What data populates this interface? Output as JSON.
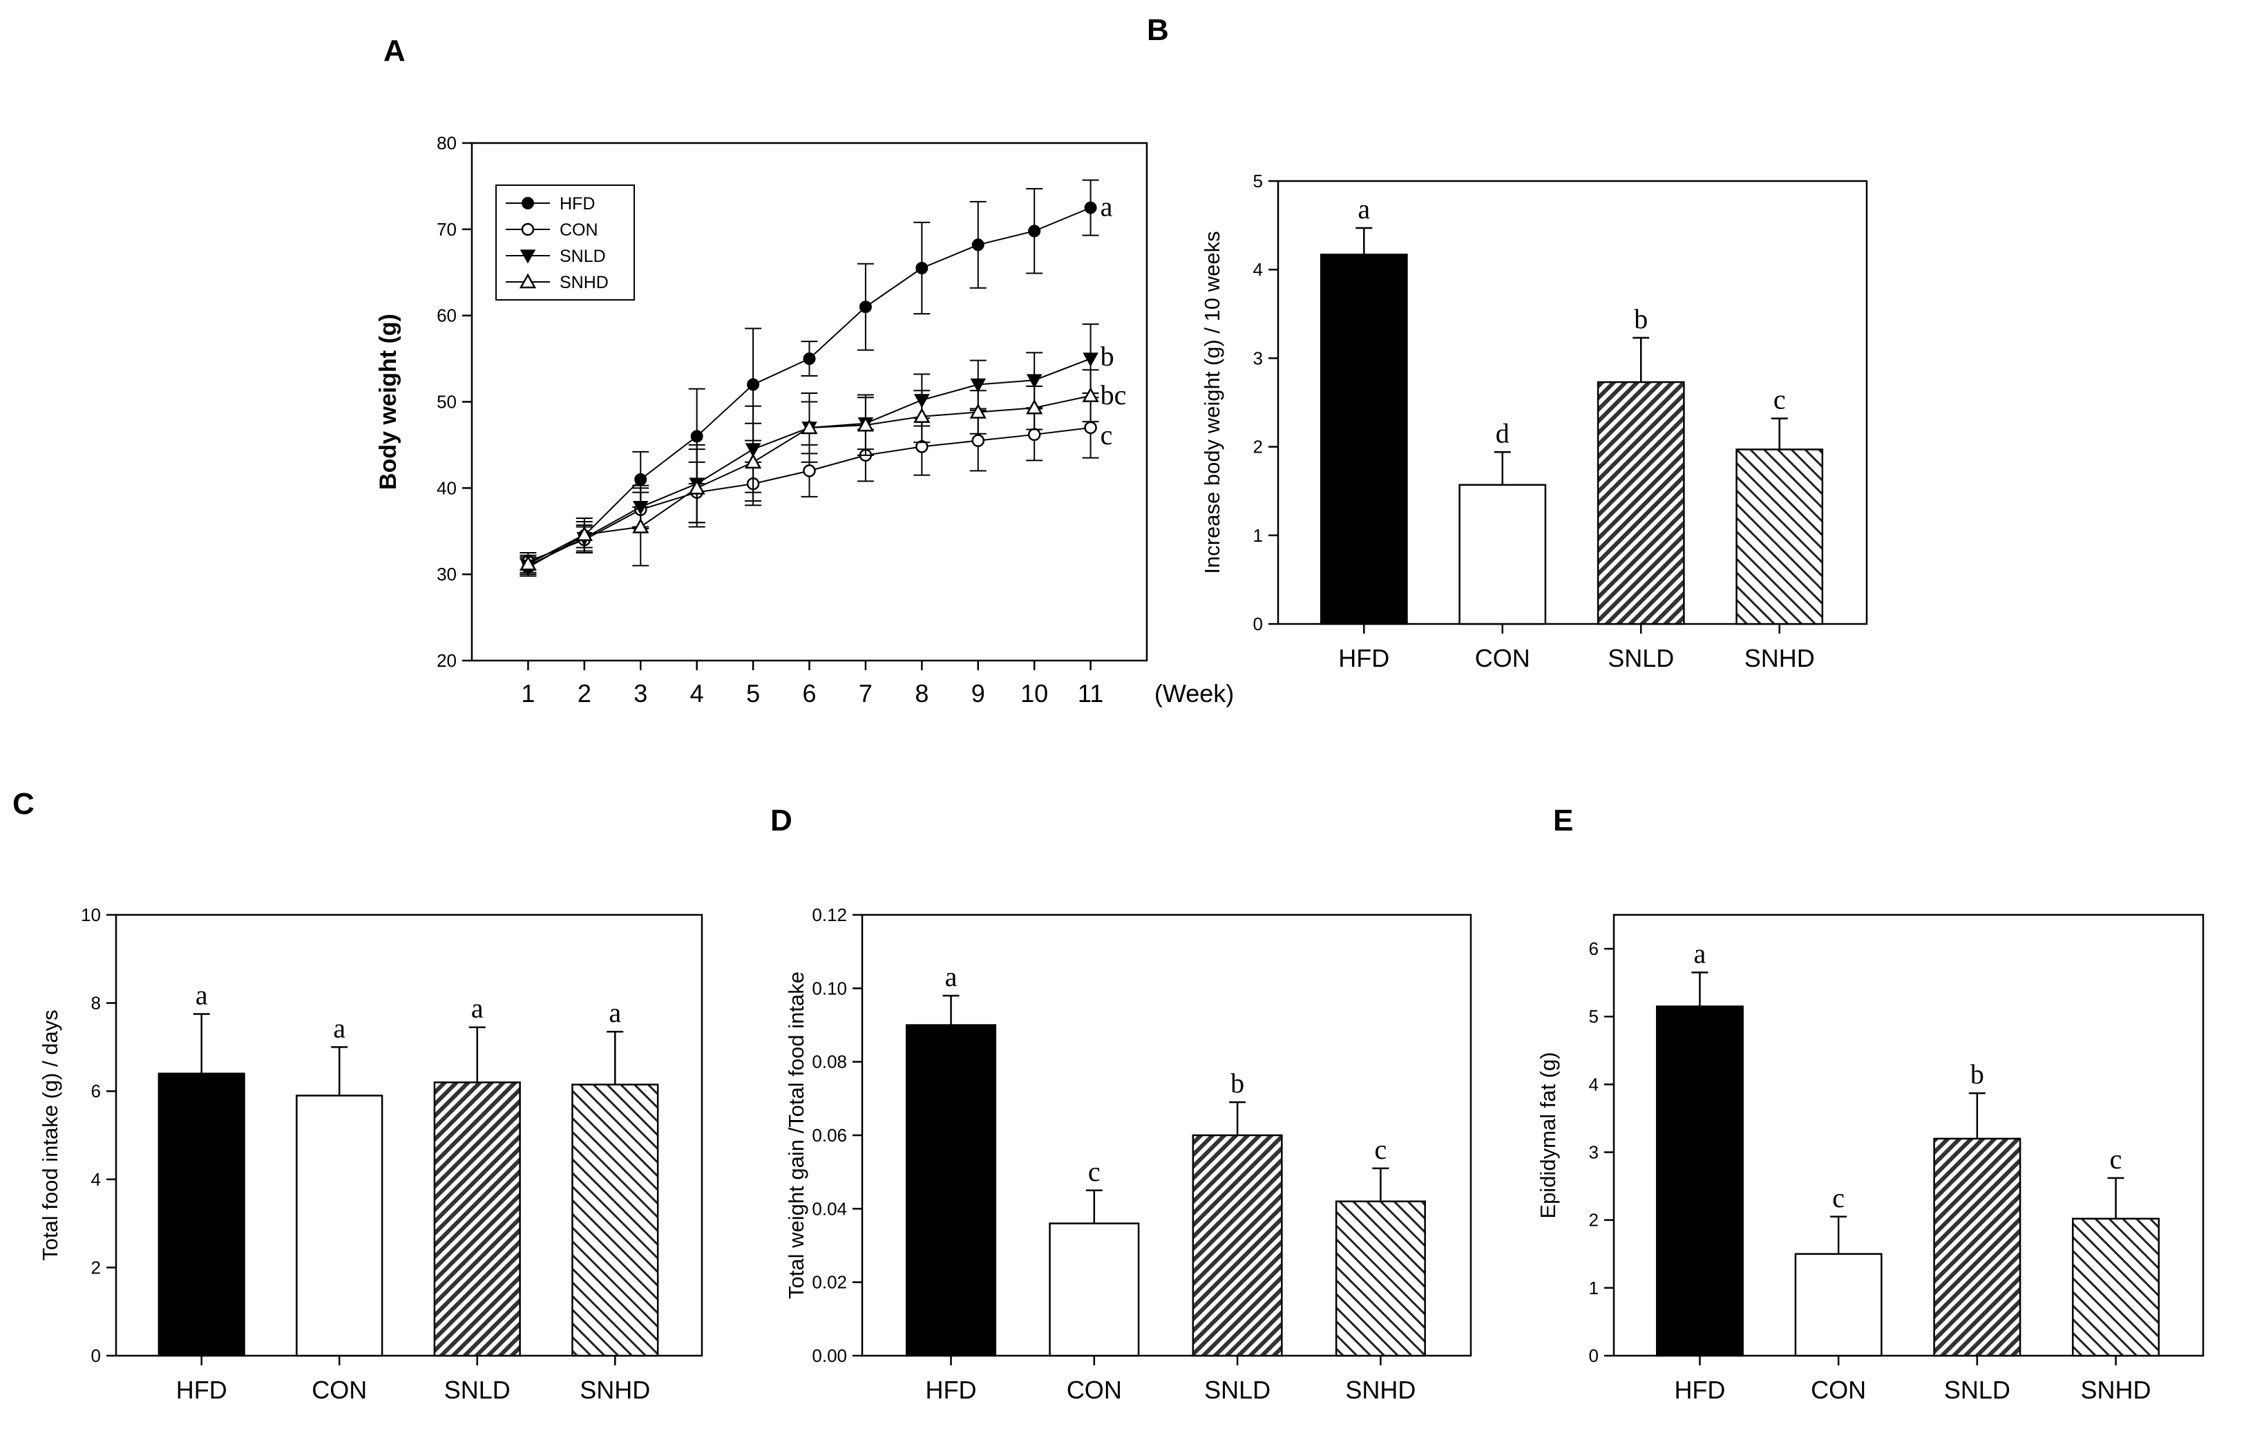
{
  "chart_data": [
    {
      "id": "A",
      "type": "line",
      "panel_label": "A",
      "ylabel": "Body weight (g)",
      "xlabel": "(Week)",
      "x": [
        1,
        2,
        3,
        4,
        5,
        6,
        7,
        8,
        9,
        10,
        11
      ],
      "xticks": [
        "1",
        "2",
        "3",
        "4",
        "5",
        "6",
        "7",
        "8",
        "9",
        "10",
        "11"
      ],
      "xlim": [
        0,
        12
      ],
      "ylim": [
        20,
        80
      ],
      "yticks": [
        "20",
        "30",
        "40",
        "50",
        "60",
        "70",
        "80"
      ],
      "series": [
        {
          "name": "HFD",
          "marker": "filled-circle",
          "sig": "a",
          "values": [
            30.8,
            34.5,
            41.0,
            46.0,
            52.0,
            55.0,
            61.0,
            65.5,
            68.2,
            69.8,
            72.5
          ],
          "errors": [
            1.0,
            2.0,
            3.2,
            5.5,
            6.5,
            2.0,
            5.0,
            5.3,
            5.0,
            4.9,
            3.2
          ]
        },
        {
          "name": "CON",
          "marker": "open-circle",
          "sig": "c",
          "values": [
            31.5,
            34.0,
            37.5,
            39.5,
            40.5,
            42.0,
            43.8,
            44.8,
            45.5,
            46.2,
            47.0
          ],
          "errors": [
            1.0,
            1.5,
            2.0,
            3.5,
            2.5,
            3.0,
            3.0,
            3.3,
            3.5,
            3.0,
            3.5
          ]
        },
        {
          "name": "SNLD",
          "marker": "filled-triangle-down",
          "sig": "b",
          "values": [
            31.0,
            34.2,
            37.8,
            40.5,
            44.5,
            47.0,
            47.5,
            50.2,
            52.0,
            52.5,
            55.0
          ],
          "errors": [
            1.0,
            1.5,
            2.5,
            4.5,
            5.0,
            4.0,
            3.0,
            3.0,
            2.8,
            3.2,
            4.0
          ]
        },
        {
          "name": "SNHD",
          "marker": "open-triangle-up",
          "sig": "bc",
          "values": [
            31.2,
            34.6,
            35.5,
            40.0,
            43.0,
            47.0,
            47.3,
            48.3,
            48.8,
            49.3,
            50.7
          ],
          "errors": [
            1.0,
            1.5,
            4.5,
            4.5,
            4.5,
            3.0,
            3.5,
            3.0,
            2.5,
            2.5,
            3.0
          ]
        }
      ]
    },
    {
      "id": "B",
      "type": "bar",
      "panel_label": "B",
      "ylabel": "Increase body weight (g) / 10 weeks",
      "categories": [
        "HFD",
        "CON",
        "SNLD",
        "SNHD"
      ],
      "values": [
        4.17,
        1.57,
        2.73,
        1.97
      ],
      "errors": [
        0.3,
        0.37,
        0.5,
        0.35
      ],
      "sig": [
        "a",
        "d",
        "b",
        "c"
      ],
      "ylim": [
        0,
        5
      ],
      "yticks": [
        "0",
        "1",
        "2",
        "3",
        "4",
        "5"
      ]
    },
    {
      "id": "C",
      "type": "bar",
      "panel_label": "C",
      "ylabel": "Total food intake (g) / days",
      "categories": [
        "HFD",
        "CON",
        "SNLD",
        "SNHD"
      ],
      "values": [
        6.4,
        5.9,
        6.2,
        6.15
      ],
      "errors": [
        1.35,
        1.1,
        1.25,
        1.2
      ],
      "sig": [
        "a",
        "a",
        "a",
        "a"
      ],
      "ylim": [
        0,
        10
      ],
      "yticks": [
        "0",
        "2",
        "4",
        "6",
        "8",
        "10"
      ]
    },
    {
      "id": "D",
      "type": "bar",
      "panel_label": "D",
      "ylabel": "Total weight gain /Total food intake",
      "categories": [
        "HFD",
        "CON",
        "SNLD",
        "SNHD"
      ],
      "values": [
        0.09,
        0.036,
        0.06,
        0.042
      ],
      "errors": [
        0.008,
        0.009,
        0.009,
        0.009
      ],
      "sig": [
        "a",
        "c",
        "b",
        "c"
      ],
      "ylim": [
        0,
        0.12
      ],
      "yticks": [
        "0.00",
        "0.02",
        "0.04",
        "0.06",
        "0.08",
        "0.10",
        "0.12"
      ]
    },
    {
      "id": "E",
      "type": "bar",
      "panel_label": "E",
      "ylabel": "Epididymal fat (g)",
      "categories": [
        "HFD",
        "CON",
        "SNLD",
        "SNHD"
      ],
      "values": [
        5.15,
        1.5,
        3.2,
        2.02
      ],
      "errors": [
        0.5,
        0.55,
        0.67,
        0.6
      ],
      "sig": [
        "a",
        "c",
        "b",
        "c"
      ],
      "ylim": [
        0,
        6.5
      ],
      "yticks": [
        "0",
        "1",
        "2",
        "3",
        "4",
        "5",
        "6"
      ]
    }
  ],
  "colors": {
    "ink": "#000000",
    "open": "#ffffff"
  }
}
